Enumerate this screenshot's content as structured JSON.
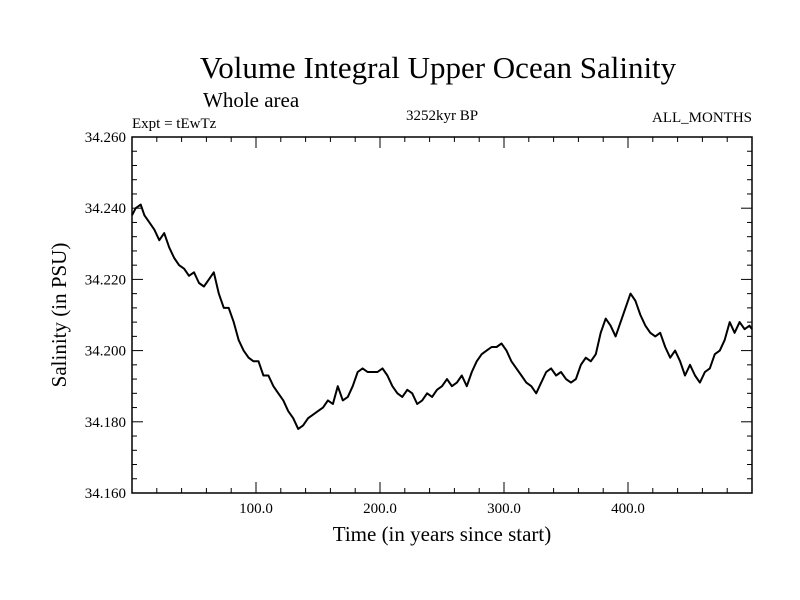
{
  "chart_data": {
    "type": "line",
    "title": "Volume Integral Upper Ocean Salinity",
    "subtitle": "Whole area",
    "expt_label": "Expt = tEwTz",
    "period_label": "3252kyr BP",
    "months_label": "ALL_MONTHS",
    "xlabel": "Time (in years since start)",
    "ylabel": "Salinity (in PSU)",
    "xlim": [
      0,
      500
    ],
    "ylim": [
      34.16,
      34.26
    ],
    "x_ticks": [
      100,
      200,
      300,
      400
    ],
    "x_tick_labels": [
      "100.0",
      "200.0",
      "300.0",
      "400.0"
    ],
    "y_ticks": [
      34.16,
      34.18,
      34.2,
      34.22,
      34.24,
      34.26
    ],
    "y_tick_labels": [
      "34.160",
      "34.180",
      "34.200",
      "34.220",
      "34.240",
      "34.260"
    ],
    "series": [
      {
        "name": "Salinity",
        "color": "#000000",
        "x": [
          0,
          3,
          7,
          10,
          14,
          18,
          22,
          26,
          30,
          34,
          38,
          42,
          46,
          50,
          54,
          58,
          62,
          66,
          70,
          74,
          78,
          82,
          86,
          90,
          94,
          98,
          102,
          106,
          110,
          114,
          118,
          122,
          126,
          130,
          134,
          138,
          142,
          146,
          150,
          154,
          158,
          162,
          166,
          170,
          174,
          178,
          182,
          186,
          190,
          194,
          198,
          202,
          206,
          210,
          214,
          218,
          222,
          226,
          230,
          234,
          238,
          242,
          246,
          250,
          254,
          258,
          262,
          266,
          270,
          274,
          278,
          282,
          286,
          290,
          294,
          298,
          302,
          306,
          310,
          314,
          318,
          322,
          326,
          330,
          334,
          338,
          342,
          346,
          350,
          354,
          358,
          362,
          366,
          370,
          374,
          378,
          382,
          386,
          390,
          394,
          398,
          402,
          406,
          410,
          414,
          418,
          422,
          426,
          430,
          434,
          438,
          442,
          446,
          450,
          454,
          458,
          462,
          466,
          470,
          474,
          478,
          482,
          486,
          490,
          494,
          498,
          500
        ],
        "values": [
          34.238,
          34.24,
          34.241,
          34.238,
          34.236,
          34.234,
          34.231,
          34.233,
          34.229,
          34.226,
          34.224,
          34.223,
          34.221,
          34.222,
          34.219,
          34.218,
          34.22,
          34.222,
          34.216,
          34.212,
          34.212,
          34.208,
          34.203,
          34.2,
          34.198,
          34.197,
          34.197,
          34.193,
          34.193,
          34.19,
          34.188,
          34.186,
          34.183,
          34.181,
          34.178,
          34.179,
          34.181,
          34.182,
          34.183,
          34.184,
          34.186,
          34.185,
          34.19,
          34.186,
          34.187,
          34.19,
          34.194,
          34.195,
          34.194,
          34.194,
          34.194,
          34.195,
          34.193,
          34.19,
          34.188,
          34.187,
          34.189,
          34.188,
          34.185,
          34.186,
          34.188,
          34.187,
          34.189,
          34.19,
          34.192,
          34.19,
          34.191,
          34.193,
          34.19,
          34.194,
          34.197,
          34.199,
          34.2,
          34.201,
          34.201,
          34.202,
          34.2,
          34.197,
          34.195,
          34.193,
          34.191,
          34.19,
          34.188,
          34.191,
          34.194,
          34.195,
          34.193,
          34.194,
          34.192,
          34.191,
          34.192,
          34.196,
          34.198,
          34.197,
          34.199,
          34.205,
          34.209,
          34.207,
          34.204,
          34.208,
          34.212,
          34.216,
          34.214,
          34.21,
          34.207,
          34.205,
          34.204,
          34.205,
          34.201,
          34.198,
          34.2,
          34.197,
          34.193,
          34.196,
          34.193,
          34.191,
          34.194,
          34.195,
          34.199,
          34.2,
          34.203,
          34.208,
          34.205,
          34.208,
          34.206,
          34.207,
          34.206
        ]
      }
    ]
  }
}
